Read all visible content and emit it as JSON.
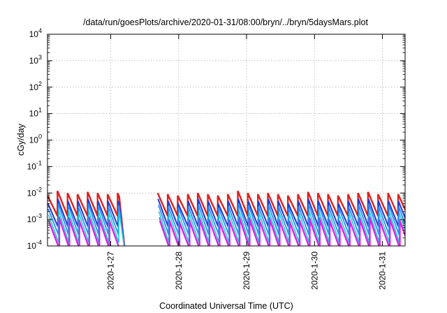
{
  "chart_data": {
    "type": "line",
    "title": "/data/run/goesPlots/archive/2020-01-31/08:00/bryn/../bryn/5daysMars.plot",
    "xlabel": "Coordinated Universal Time (UTC)",
    "ylabel": "cGy/day",
    "yscale": "log",
    "ylim": [
      0.0001,
      10000
    ],
    "xlim": [
      "2020-01-26 01:40",
      "2020-01-31 08:00"
    ],
    "grid": true,
    "legend": "none",
    "y_ticks": [
      {
        "exp": "-4",
        "value": 0.0001
      },
      {
        "exp": "-3",
        "value": 0.001
      },
      {
        "exp": "-2",
        "value": 0.01
      },
      {
        "exp": "-1",
        "value": 0.1
      },
      {
        "exp": "0",
        "value": 1
      },
      {
        "exp": "1",
        "value": 10
      },
      {
        "exp": "2",
        "value": 100
      },
      {
        "exp": "3",
        "value": 1000
      },
      {
        "exp": "4",
        "value": 10000
      }
    ],
    "x_ticks": [
      {
        "label": "2020-1-27",
        "value": "2020-01-27 00:00"
      },
      {
        "label": "2020-1-28",
        "value": "2020-01-28 00:00"
      },
      {
        "label": "2020-1-29",
        "value": "2020-01-29 00:00"
      },
      {
        "label": "2020-1-30",
        "value": "2020-01-30 00:00"
      },
      {
        "label": "2020-1-31",
        "value": "2020-01-31 00:00"
      }
    ],
    "data_gap": [
      "2020-01-27 03:00",
      "2020-01-27 14:30"
    ],
    "series_colors": [
      "#e0201c",
      "#1f3cd0",
      "#2f8cff",
      "#19c8d6",
      "#8a4fbf",
      "#e61ee6"
    ],
    "series_data": [
      {
        "color": "#e0201c",
        "peaks": [
          0.008,
          0.012,
          0.01,
          0.009,
          0.011,
          0.01,
          0.009,
          0.01,
          0.009,
          0.008,
          0.009,
          0.01,
          0.009,
          0.008,
          0.009,
          0.01,
          0.009,
          0.008,
          0.009,
          0.012,
          0.01,
          0.009,
          0.01,
          0.009,
          0.008,
          0.009,
          0.011,
          0.01,
          0.009,
          0.008,
          0.009,
          0.01,
          0.011,
          0.009,
          0.01,
          0.009
        ],
        "floor": 0.0015
      },
      {
        "color": "#1f3cd0",
        "peaks": [
          0.004,
          0.006,
          0.005,
          0.005,
          0.006,
          0.005,
          0.005,
          0.005,
          0.005,
          0.004,
          0.005,
          0.006,
          0.005,
          0.004,
          0.005,
          0.006,
          0.005,
          0.004,
          0.005,
          0.006,
          0.005,
          0.005,
          0.006,
          0.005,
          0.004,
          0.005,
          0.006,
          0.005,
          0.005,
          0.004,
          0.005,
          0.006,
          0.006,
          0.005,
          0.005,
          0.005
        ],
        "floor": 0.0006
      },
      {
        "color": "#2f8cff",
        "peaks": [
          0.0025,
          0.004,
          0.0035,
          0.003,
          0.004,
          0.0035,
          0.003,
          0.0035,
          0.003,
          0.0028,
          0.003,
          0.0035,
          0.003,
          0.0028,
          0.003,
          0.0035,
          0.003,
          0.0028,
          0.003,
          0.004,
          0.0035,
          0.003,
          0.0035,
          0.003,
          0.0028,
          0.003,
          0.0038,
          0.0035,
          0.003,
          0.0028,
          0.003,
          0.0035,
          0.0038,
          0.003,
          0.0035,
          0.003
        ],
        "floor": 0.0003
      },
      {
        "color": "#19c8d6",
        "peaks": [
          0.0015,
          0.0022,
          0.002,
          0.0018,
          0.0022,
          0.002,
          0.0018,
          0.002,
          0.0018,
          0.0016,
          0.0018,
          0.002,
          0.0018,
          0.0016,
          0.0018,
          0.002,
          0.0018,
          0.0016,
          0.0018,
          0.0022,
          0.002,
          0.0018,
          0.002,
          0.0018,
          0.0016,
          0.0018,
          0.0021,
          0.002,
          0.0018,
          0.0016,
          0.0018,
          0.002,
          0.0021,
          0.0018,
          0.002,
          0.0018
        ],
        "floor": 0.00015
      },
      {
        "color": "#8a4fbf",
        "peaks": [
          0.0009,
          0.0013,
          0.0012,
          0.001,
          0.0013,
          0.0012,
          0.001,
          0.0012,
          0.001,
          0.0009,
          0.001,
          0.0012,
          0.001,
          0.0009,
          0.001,
          0.0012,
          0.001,
          0.0009,
          0.001,
          0.0013,
          0.0012,
          0.001,
          0.0012,
          0.001,
          0.0009,
          0.001,
          0.0012,
          0.0012,
          0.001,
          0.0009,
          0.001,
          0.0012,
          0.0013,
          0.001,
          0.0012,
          0.001
        ],
        "floor": 0.0001
      },
      {
        "color": "#e61ee6",
        "peaks": [
          0.0007,
          0.001,
          0.0009,
          0.0008,
          0.001,
          0.0009,
          0.0008,
          0.0009,
          0.0008,
          0.0007,
          0.0008,
          0.0009,
          0.0008,
          0.0007,
          0.0008,
          0.0009,
          0.0008,
          0.0007,
          0.0008,
          0.001,
          0.0009,
          0.0008,
          0.0009,
          0.0008,
          0.0007,
          0.0008,
          0.0009,
          0.0009,
          0.0008,
          0.0007,
          0.0008,
          0.0009,
          0.001,
          0.0008,
          0.0009,
          0.0008
        ],
        "floor": 8e-05
      }
    ]
  }
}
